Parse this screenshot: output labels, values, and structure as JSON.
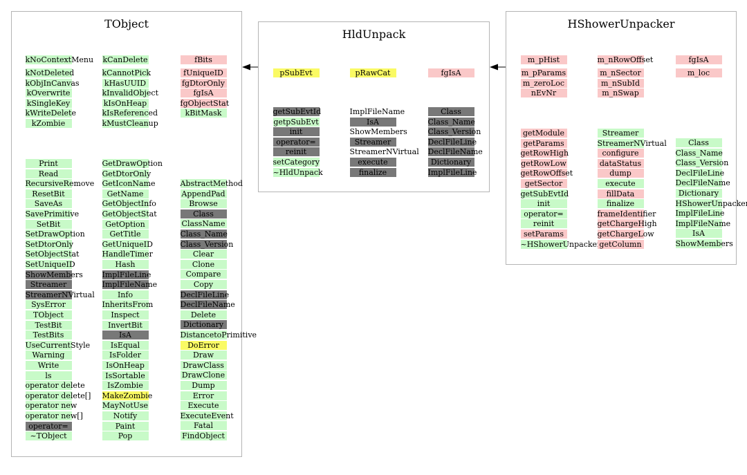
{
  "colors": {
    "green": "#c8fac8",
    "pink": "#fac8c8",
    "yellow": "#fafa64",
    "gray": "#787878",
    "border": "#b4b4b4"
  },
  "classes": [
    {
      "key": "tobject",
      "title": "TObject",
      "groups": [
        {
          "column": 1,
          "row0": 0,
          "items": [
            {
              "t": "kNoContextMenu",
              "c": "green"
            }
          ]
        },
        {
          "column": 2,
          "row0": 0,
          "items": [
            {
              "t": "kCanDelete",
              "c": "green"
            }
          ]
        },
        {
          "column": 3,
          "row0": 0,
          "items": [
            {
              "t": "fBits",
              "c": "pink"
            }
          ]
        },
        {
          "column": 1,
          "row0": 1.3,
          "items": [
            {
              "t": "kNotDeleted",
              "c": "green"
            },
            {
              "t": "kObjInCanvas",
              "c": "green"
            },
            {
              "t": "kOverwrite",
              "c": "green"
            },
            {
              "t": "kSingleKey",
              "c": "green"
            },
            {
              "t": "kWriteDelete",
              "c": "green"
            },
            {
              "t": "kZombie",
              "c": "green"
            }
          ]
        },
        {
          "column": 2,
          "row0": 1.3,
          "items": [
            {
              "t": "kCannotPick",
              "c": "green"
            },
            {
              "t": "kHasUUID",
              "c": "green"
            },
            {
              "t": "kInvalidObject",
              "c": "green"
            },
            {
              "t": "kIsOnHeap",
              "c": "green"
            },
            {
              "t": "kIsReferenced",
              "c": "green"
            },
            {
              "t": "kMustCleanup",
              "c": "green"
            }
          ]
        },
        {
          "column": 3,
          "row0": 1.3,
          "items": [
            {
              "t": "fUniqueID",
              "c": "pink"
            },
            {
              "t": "fgDtorOnly",
              "c": "pink"
            },
            {
              "t": "fgIsA",
              "c": "pink"
            },
            {
              "t": "fgObjectStat",
              "c": "pink"
            },
            {
              "t": "kBitMask",
              "c": "green"
            }
          ]
        }
      ]
    }
  ],
  "tobject": {
    "title": "TObject",
    "top_left": [
      {
        "t": "kNoContextMenu",
        "c": "green"
      }
    ],
    "col1_consts": [
      "kNotDeleted",
      "kObjInCanvas",
      "kOverwrite",
      "kSingleKey",
      "kWriteDelete",
      "kZombie"
    ],
    "col2_top": "kCanDelete",
    "col2_consts": [
      "kCannotPick",
      "kHasUUID",
      "kInvalidObject",
      "kIsOnHeap",
      "kIsReferenced",
      "kMustCleanup"
    ],
    "col3_top": "fBits",
    "col3_consts": [
      {
        "t": "fUniqueID",
        "c": "pink"
      },
      {
        "t": "fgDtorOnly",
        "c": "pink"
      },
      {
        "t": "fgIsA",
        "c": "pink"
      },
      {
        "t": "fgObjectStat",
        "c": "pink"
      },
      {
        "t": "kBitMask",
        "c": "green"
      }
    ],
    "col1_methods": [
      {
        "t": "Print",
        "c": "green"
      },
      {
        "t": "Read",
        "c": "green"
      },
      {
        "t": "RecursiveRemove",
        "c": "green"
      },
      {
        "t": "ResetBit",
        "c": "green"
      },
      {
        "t": "SaveAs",
        "c": "green"
      },
      {
        "t": "SavePrimitive",
        "c": "green"
      },
      {
        "t": "SetBit",
        "c": "green"
      },
      {
        "t": "SetDrawOption",
        "c": "green"
      },
      {
        "t": "SetDtorOnly",
        "c": "green"
      },
      {
        "t": "SetObjectStat",
        "c": "green"
      },
      {
        "t": "SetUniqueID",
        "c": "green"
      },
      {
        "t": "ShowMembers",
        "c": "gray"
      },
      {
        "t": "Streamer",
        "c": "gray"
      },
      {
        "t": "StreamerNVirtual",
        "c": "gray"
      },
      {
        "t": "SysError",
        "c": "green"
      },
      {
        "t": "TObject",
        "c": "green"
      },
      {
        "t": "TestBit",
        "c": "green"
      },
      {
        "t": "TestBits",
        "c": "green"
      },
      {
        "t": "UseCurrentStyle",
        "c": "green"
      },
      {
        "t": "Warning",
        "c": "green"
      },
      {
        "t": "Write",
        "c": "green"
      },
      {
        "t": "ls",
        "c": "green"
      },
      {
        "t": "operator delete",
        "c": "green"
      },
      {
        "t": "operator delete[]",
        "c": "green"
      },
      {
        "t": "operator new",
        "c": "green"
      },
      {
        "t": "operator new[]",
        "c": "green"
      },
      {
        "t": "operator=",
        "c": "gray"
      },
      {
        "t": "~TObject",
        "c": "green"
      }
    ],
    "col2_methods": [
      {
        "t": "GetDrawOption",
        "c": "green"
      },
      {
        "t": "GetDtorOnly",
        "c": "green"
      },
      {
        "t": "GetIconName",
        "c": "green"
      },
      {
        "t": "GetName",
        "c": "green"
      },
      {
        "t": "GetObjectInfo",
        "c": "green"
      },
      {
        "t": "GetObjectStat",
        "c": "green"
      },
      {
        "t": "GetOption",
        "c": "green"
      },
      {
        "t": "GetTitle",
        "c": "green"
      },
      {
        "t": "GetUniqueID",
        "c": "green"
      },
      {
        "t": "HandleTimer",
        "c": "green"
      },
      {
        "t": "Hash",
        "c": "green"
      },
      {
        "t": "ImplFileLine",
        "c": "gray"
      },
      {
        "t": "ImplFileName",
        "c": "gray"
      },
      {
        "t": "Info",
        "c": "green"
      },
      {
        "t": "InheritsFrom",
        "c": "green"
      },
      {
        "t": "Inspect",
        "c": "green"
      },
      {
        "t": "InvertBit",
        "c": "green"
      },
      {
        "t": "IsA",
        "c": "gray"
      },
      {
        "t": "IsEqual",
        "c": "green"
      },
      {
        "t": "IsFolder",
        "c": "green"
      },
      {
        "t": "IsOnHeap",
        "c": "green"
      },
      {
        "t": "IsSortable",
        "c": "green"
      },
      {
        "t": "IsZombie",
        "c": "green"
      },
      {
        "t": "MakeZombie",
        "c": "yellow"
      },
      {
        "t": "MayNotUse",
        "c": "green"
      },
      {
        "t": "Notify",
        "c": "green"
      },
      {
        "t": "Paint",
        "c": "green"
      },
      {
        "t": "Pop",
        "c": "green"
      }
    ],
    "col3_methods": [
      {
        "t": "AbstractMethod",
        "c": "green"
      },
      {
        "t": "AppendPad",
        "c": "green"
      },
      {
        "t": "Browse",
        "c": "green"
      },
      {
        "t": "Class",
        "c": "gray"
      },
      {
        "t": "ClassName",
        "c": "green"
      },
      {
        "t": "Class_Name",
        "c": "gray"
      },
      {
        "t": "Class_Version",
        "c": "gray"
      },
      {
        "t": "Clear",
        "c": "green"
      },
      {
        "t": "Clone",
        "c": "green"
      },
      {
        "t": "Compare",
        "c": "green"
      },
      {
        "t": "Copy",
        "c": "green"
      },
      {
        "t": "DeclFileLine",
        "c": "gray"
      },
      {
        "t": "DeclFileName",
        "c": "gray"
      },
      {
        "t": "Delete",
        "c": "green"
      },
      {
        "t": "Dictionary",
        "c": "gray"
      },
      {
        "t": "DistancetoPrimitive",
        "c": "green"
      },
      {
        "t": "DoError",
        "c": "yellow"
      },
      {
        "t": "Draw",
        "c": "green"
      },
      {
        "t": "DrawClass",
        "c": "green"
      },
      {
        "t": "DrawClone",
        "c": "green"
      },
      {
        "t": "Dump",
        "c": "green"
      },
      {
        "t": "Error",
        "c": "green"
      },
      {
        "t": "Execute",
        "c": "green"
      },
      {
        "t": "ExecuteEvent",
        "c": "green"
      },
      {
        "t": "Fatal",
        "c": "green"
      },
      {
        "t": "FindObject",
        "c": "green"
      }
    ]
  },
  "hldunpack": {
    "title": "HldUnpack",
    "members": [
      {
        "t": "pSubEvt",
        "c": "yellow"
      },
      {
        "t": "pRawCat",
        "c": "yellow"
      },
      {
        "t": "fgIsA",
        "c": "pink"
      }
    ],
    "col1_methods": [
      {
        "t": "getSubEvtId",
        "c": "gray"
      },
      {
        "t": "getpSubEvt",
        "c": "green"
      },
      {
        "t": "init",
        "c": "gray"
      },
      {
        "t": "operator=",
        "c": "gray"
      },
      {
        "t": "reinit",
        "c": "gray"
      },
      {
        "t": "setCategory",
        "c": "green"
      },
      {
        "t": "~HldUnpack",
        "c": "green"
      }
    ],
    "col2_methods": [
      {
        "t": "ImplFileName",
        "c": "none"
      },
      {
        "t": "IsA",
        "c": "gray"
      },
      {
        "t": "ShowMembers",
        "c": "none"
      },
      {
        "t": "Streamer",
        "c": "gray"
      },
      {
        "t": "StreamerNVirtual",
        "c": "none"
      },
      {
        "t": "execute",
        "c": "gray"
      },
      {
        "t": "finalize",
        "c": "gray"
      }
    ],
    "col3_methods": [
      {
        "t": "Class",
        "c": "gray"
      },
      {
        "t": "Class_Name",
        "c": "gray"
      },
      {
        "t": "Class_Version",
        "c": "gray"
      },
      {
        "t": "DeclFileLine",
        "c": "gray"
      },
      {
        "t": "DeclFileName",
        "c": "gray"
      },
      {
        "t": "Dictionary",
        "c": "gray"
      },
      {
        "t": "ImplFileLine",
        "c": "gray"
      }
    ]
  },
  "hshower": {
    "title": "HShowerUnpacker",
    "top": [
      {
        "t": "m_pHist",
        "c": "pink"
      },
      {
        "t": "m_nRowOffset",
        "c": "pink"
      },
      {
        "t": "fgIsA",
        "c": "pink"
      }
    ],
    "col1_members": [
      {
        "t": "m_pParams",
        "c": "pink"
      },
      {
        "t": "m_zeroLoc",
        "c": "pink"
      },
      {
        "t": "nEvNr",
        "c": "pink"
      }
    ],
    "col2_members": [
      {
        "t": "m_nSector",
        "c": "pink"
      },
      {
        "t": "m_nSubId",
        "c": "pink"
      },
      {
        "t": "m_nSwap",
        "c": "pink"
      }
    ],
    "col3_members": [
      {
        "t": "m_loc",
        "c": "pink"
      }
    ],
    "col1_methods": [
      {
        "t": "getModule",
        "c": "pink"
      },
      {
        "t": "getParams",
        "c": "pink"
      },
      {
        "t": "getRowHigh",
        "c": "pink"
      },
      {
        "t": "getRowLow",
        "c": "pink"
      },
      {
        "t": "getRowOffset",
        "c": "pink"
      },
      {
        "t": "getSector",
        "c": "pink"
      },
      {
        "t": "getSubEvtId",
        "c": "green"
      },
      {
        "t": "init",
        "c": "green"
      },
      {
        "t": "operator=",
        "c": "green"
      },
      {
        "t": "reinit",
        "c": "green"
      },
      {
        "t": "setParams",
        "c": "pink"
      },
      {
        "t": "~HShowerUnpacker",
        "c": "green"
      }
    ],
    "col2_methods": [
      {
        "t": "Streamer",
        "c": "green"
      },
      {
        "t": "StreamerNVirtual",
        "c": "green"
      },
      {
        "t": "configure",
        "c": "pink"
      },
      {
        "t": "dataStatus",
        "c": "pink"
      },
      {
        "t": "dump",
        "c": "pink"
      },
      {
        "t": "execute",
        "c": "green"
      },
      {
        "t": "fillData",
        "c": "pink"
      },
      {
        "t": "finalize",
        "c": "green"
      },
      {
        "t": "frameIdentifier",
        "c": "pink"
      },
      {
        "t": "getChargeHigh",
        "c": "pink"
      },
      {
        "t": "getChargeLow",
        "c": "pink"
      },
      {
        "t": "getColumn",
        "c": "pink"
      }
    ],
    "col3_methods": [
      {
        "t": "Class",
        "c": "green"
      },
      {
        "t": "Class_Name",
        "c": "green"
      },
      {
        "t": "Class_Version",
        "c": "green"
      },
      {
        "t": "DeclFileLine",
        "c": "green"
      },
      {
        "t": "DeclFileName",
        "c": "green"
      },
      {
        "t": "Dictionary",
        "c": "green"
      },
      {
        "t": "HShowerUnpacker",
        "c": "green"
      },
      {
        "t": "ImplFileLine",
        "c": "green"
      },
      {
        "t": "ImplFileName",
        "c": "green"
      },
      {
        "t": "IsA",
        "c": "green"
      },
      {
        "t": "ShowMembers",
        "c": "green"
      }
    ]
  }
}
